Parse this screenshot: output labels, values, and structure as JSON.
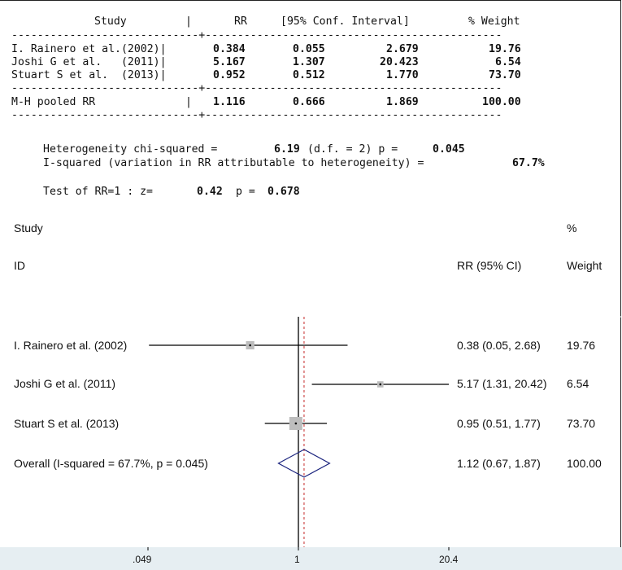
{
  "table": {
    "header": {
      "study": "Study",
      "sep": "|",
      "rr": "RR",
      "ci": "[95% Conf. Interval]",
      "weight": "% Weight"
    },
    "dash_top": "-----------------------------+----------------------------------------------",
    "rows": [
      {
        "study": "I. Rainero et al.(2002)|",
        "rr": "0.384",
        "lo": "0.055",
        "hi": "2.679",
        "weight": "19.76"
      },
      {
        "study": "Joshi G et al.   (2011)|",
        "rr": "5.167",
        "lo": "1.307",
        "hi": "20.423",
        "weight": "6.54"
      },
      {
        "study": "Stuart S et al.  (2013)|",
        "rr": "0.952",
        "lo": "0.512",
        "hi": "1.770",
        "weight": "73.70"
      }
    ],
    "dash_mid": "-----------------------------+----------------------------------------------",
    "pooled": {
      "study": "M-H pooled RR",
      "sep": "|",
      "rr": "1.116",
      "lo": "0.666",
      "hi": "1.869",
      "weight": "100.00"
    },
    "dash_bot": "-----------------------------+----------------------------------------------"
  },
  "stats": {
    "het_label": "Heterogeneity chi-squared =",
    "het_value": "6.19",
    "het_df": "(d.f. = 2) p =",
    "het_p": "0.045",
    "i2_label": "I-squared (variation in RR attributable to heterogeneity) =",
    "i2_value": "67.7%",
    "test_label": "Test of RR=1 : z=",
    "test_z": "0.42",
    "test_p_label": "p =",
    "test_p": "0.678"
  },
  "plot_header": {
    "study": "Study",
    "id": "ID",
    "pct": "%",
    "rr_ci": "RR (95% CI)",
    "weight": "Weight"
  },
  "chart_data": {
    "type": "forest",
    "x_scale": "log",
    "xlim": [
      0.049,
      20.4
    ],
    "xticks": [
      ".049",
      "1",
      "20.4"
    ],
    "null_line": 1,
    "pooled_line": 1.12,
    "studies": [
      {
        "label": "I. Rainero et al. (2002)",
        "rr": 0.38,
        "lo": 0.05,
        "hi": 2.68,
        "ci_text": "0.38 (0.05, 2.68)",
        "weight": 19.76,
        "weight_text": "19.76"
      },
      {
        "label": "Joshi G et al. (2011)",
        "rr": 5.17,
        "lo": 1.31,
        "hi": 20.42,
        "ci_text": "5.17 (1.31, 20.42)",
        "weight": 6.54,
        "weight_text": "6.54"
      },
      {
        "label": "Stuart S et al. (2013)",
        "rr": 0.95,
        "lo": 0.51,
        "hi": 1.77,
        "ci_text": "0.95 (0.51, 1.77)",
        "weight": 73.7,
        "weight_text": "73.70"
      }
    ],
    "overall": {
      "label": "Overall  (I-squared = 67.7%, p = 0.045)",
      "rr": 1.12,
      "lo": 0.67,
      "hi": 1.87,
      "ci_text": "1.12 (0.67, 1.87)",
      "weight_text": "100.00"
    },
    "colors": {
      "ci_line": "#000000",
      "box": "#bdbdbd",
      "diamond": "#1a237e",
      "null_line": "#000000",
      "pooled_line": "#c62828",
      "axis_strip": "#e6eef2"
    }
  }
}
